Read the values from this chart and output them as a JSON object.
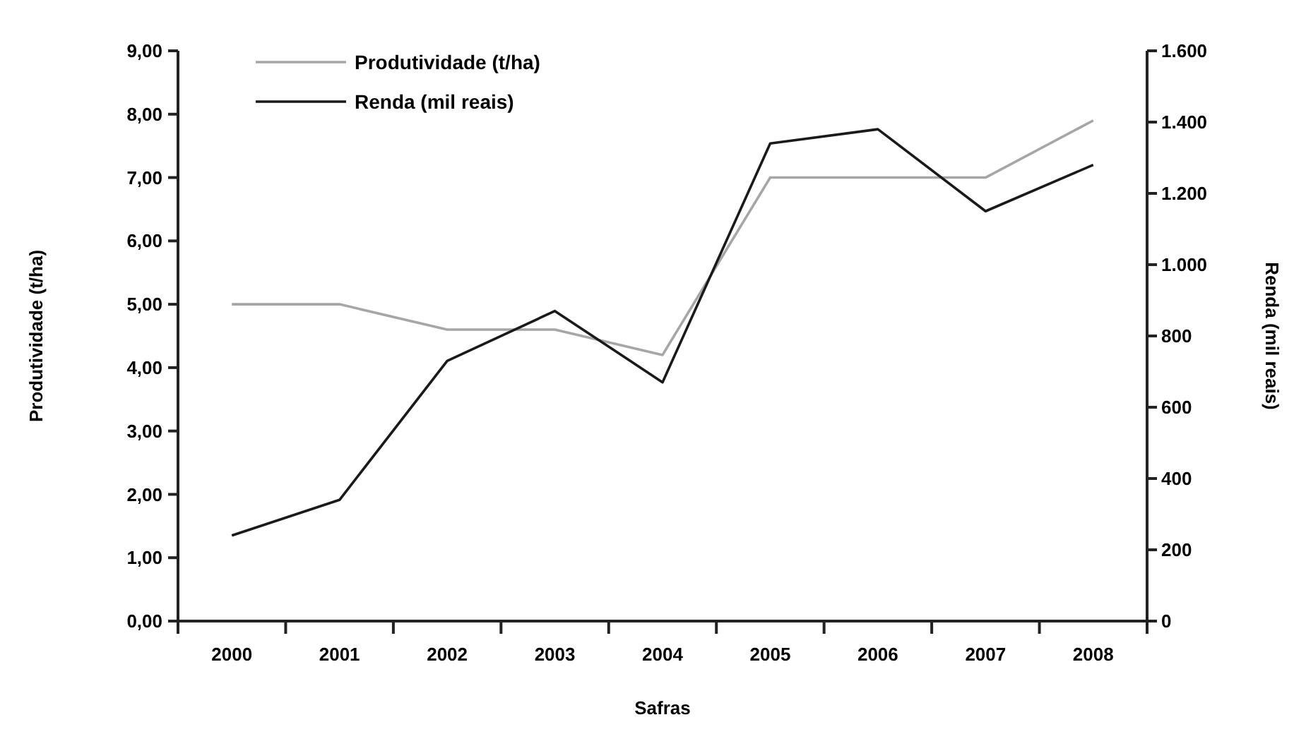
{
  "chart_data": {
    "type": "line",
    "xlabel": "Safras",
    "ylabel": "Produtividade (t/ha)",
    "y2label": "Renda (mil reais)",
    "categories": [
      "2000",
      "2001",
      "2002",
      "2003",
      "2004",
      "2005",
      "2006",
      "2007",
      "2008"
    ],
    "series": [
      {
        "name": "Produtividade (t/ha)",
        "color": "#a6a6a6",
        "values": [
          5.0,
          5.0,
          4.6,
          4.6,
          4.2,
          7.0,
          7.0,
          7.0,
          7.9
        ]
      },
      {
        "name": "Renda (mil reais)",
        "color": "#1a1a1a",
        "axis": "y2",
        "values": [
          240,
          340,
          730,
          870,
          670,
          1340,
          1380,
          1150,
          1280
        ]
      }
    ],
    "ylim": [
      0,
      9
    ],
    "yticks": [
      {
        "value": 0,
        "label": "0,00"
      },
      {
        "value": 1,
        "label": "1,00"
      },
      {
        "value": 2,
        "label": "2,00"
      },
      {
        "value": 3,
        "label": "3,00"
      },
      {
        "value": 4,
        "label": "4,00"
      },
      {
        "value": 5,
        "label": "5,00"
      },
      {
        "value": 6,
        "label": "6,00"
      },
      {
        "value": 7,
        "label": "7,00"
      },
      {
        "value": 8,
        "label": "8,00"
      },
      {
        "value": 9,
        "label": "9,00"
      }
    ],
    "y2lim": [
      0,
      1600
    ],
    "y2ticks": [
      0,
      200,
      400,
      600,
      800,
      {
        "value": 1000,
        "label": "1.000"
      },
      {
        "value": 1200,
        "label": "1.200"
      },
      {
        "value": 1400,
        "label": "1.400"
      },
      {
        "value": 1600,
        "label": "1.600"
      }
    ],
    "legend": "top left",
    "grid": false,
    "marker": "none",
    "line_style": "solid"
  }
}
